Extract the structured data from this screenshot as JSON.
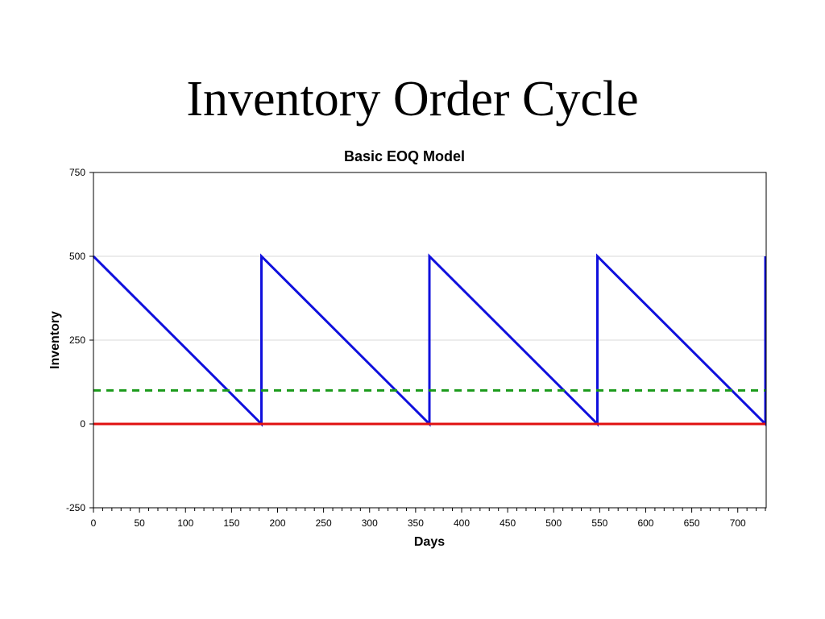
{
  "slide": {
    "title": "Inventory Order Cycle"
  },
  "chart_data": {
    "type": "line",
    "title": "Basic EOQ Model",
    "xlabel": "Days",
    "ylabel": "Inventory",
    "xlim": [
      0,
      730
    ],
    "ylim": [
      -250,
      750
    ],
    "x_ticks": [
      0,
      50,
      100,
      150,
      200,
      250,
      300,
      350,
      400,
      450,
      500,
      550,
      600,
      650,
      700
    ],
    "y_ticks": [
      -250,
      0,
      250,
      500,
      750
    ],
    "grid": "horizontal",
    "series": [
      {
        "color": "#1010dd",
        "style": "solid",
        "x": [
          0,
          182.5,
          182.5,
          365,
          365,
          547.5,
          547.5,
          730,
          730
        ],
        "y": [
          500,
          0,
          500,
          0,
          500,
          0,
          500,
          0,
          500
        ]
      },
      {
        "color": "#1a9a1a",
        "style": "dashed",
        "x": [
          0,
          730
        ],
        "y": [
          100,
          100
        ]
      },
      {
        "color": "#e01010",
        "style": "solid",
        "x": [
          0,
          730
        ],
        "y": [
          0,
          0
        ]
      }
    ]
  }
}
